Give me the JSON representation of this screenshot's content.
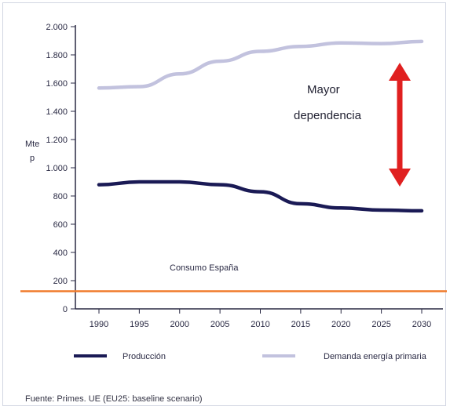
{
  "chart_data": {
    "type": "line",
    "ylabel": "Mtep",
    "xlabel": "",
    "ylim": [
      0,
      2000
    ],
    "yticks": [
      0,
      200,
      400,
      600,
      800,
      1000,
      1200,
      1400,
      1600,
      1800,
      2000
    ],
    "ytick_labels": [
      "0",
      "200",
      "400",
      "600",
      "800",
      "1.000",
      "1.200",
      "1.400",
      "1.600",
      "1.800",
      "2.000"
    ],
    "categories": [
      "1990",
      "1995",
      "2000",
      "2005",
      "2010",
      "2015",
      "2020",
      "2025",
      "2030"
    ],
    "grid": false,
    "legend": "bottom",
    "series": [
      {
        "name": "Producción",
        "color": "#1a1a55",
        "values": [
          880,
          900,
          900,
          880,
          830,
          745,
          715,
          700,
          695
        ]
      },
      {
        "name": "Demanda energía primaria",
        "color": "#c2c2de",
        "values": [
          1565,
          1575,
          1665,
          1755,
          1825,
          1860,
          1885,
          1880,
          1895
        ]
      }
    ],
    "reference_line": {
      "label": "Consumo España",
      "value": 125,
      "color": "#f07b2c"
    },
    "annotation": {
      "text_line1": "Mayor",
      "text_line2": "dependencia",
      "arrow_color": "#e02020"
    },
    "source": "Fuente: Primes. UE (EU25: baseline scenario)"
  }
}
